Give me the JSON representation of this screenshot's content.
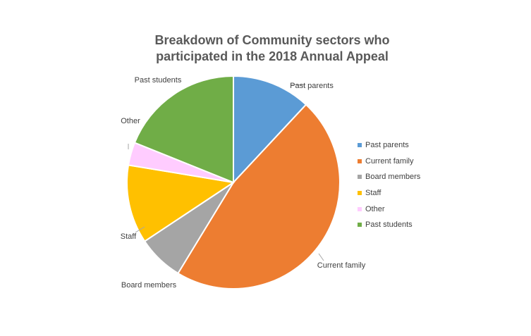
{
  "chart_data": {
    "type": "pie",
    "title": "Breakdown of Community sectors who participated in the 2018 Annual Appeal",
    "title_lines": [
      "Breakdown of Community sectors who",
      "participated in the 2018 Annual Appeal"
    ],
    "categories": [
      "Past parents",
      "Current family",
      "Board members",
      "Staff",
      "Other",
      "Past students"
    ],
    "values": [
      12,
      47,
      7,
      12,
      3.5,
      19
    ],
    "colors": [
      "#5B9BD5",
      "#ED7D31",
      "#A5A5A5",
      "#FFC000",
      "#FFCCFF",
      "#70AD47"
    ],
    "legend_position": "right",
    "data_labels": "category name, outside end with leader lines"
  }
}
